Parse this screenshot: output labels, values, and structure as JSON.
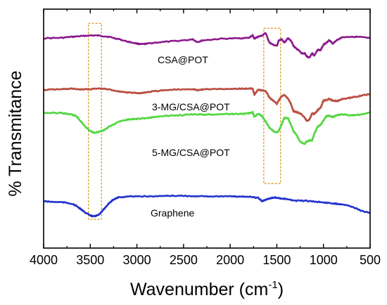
{
  "chart_data": {
    "type": "line",
    "xlabel": "Wavenumber",
    "xlabel_unit_base": "cm",
    "xlabel_unit_exp": "-1",
    "ylabel": "% Transmitance",
    "xlim": [
      4000,
      500
    ],
    "x_reversed": true,
    "ylim": [
      0,
      100
    ],
    "y_ticks_labeled": false,
    "x_ticks": [
      "4000",
      "3500",
      "3000",
      "2500",
      "2000",
      "1500",
      "1000",
      "500"
    ],
    "grid": false,
    "legend": "none",
    "series": [
      {
        "name": "CSA@POT",
        "color": "#8b1a8b",
        "x": [
          4000,
          3800,
          3700,
          3600,
          3500,
          3400,
          3300,
          3200,
          3100,
          3000,
          2950,
          2900,
          2800,
          2600,
          2400,
          2350,
          2300,
          2100,
          1900,
          1800,
          1760,
          1740,
          1700,
          1660,
          1620,
          1580,
          1540,
          1500,
          1480,
          1450,
          1420,
          1380,
          1350,
          1320,
          1290,
          1260,
          1230,
          1200,
          1180,
          1150,
          1120,
          1100,
          1060,
          1030,
          1000,
          970,
          940,
          900,
          850,
          800,
          700,
          600,
          500
        ],
        "y": [
          87.8,
          88.0,
          88.4,
          88.7,
          89.0,
          88.9,
          88.4,
          87.5,
          86.4,
          85.6,
          85.3,
          85.5,
          86.0,
          86.6,
          87.3,
          86.2,
          86.9,
          87.6,
          87.8,
          88.0,
          89.0,
          87.6,
          88.5,
          88.9,
          90.0,
          86.0,
          85.1,
          84.6,
          86.8,
          87.4,
          86.0,
          87.8,
          87.0,
          84.5,
          83.4,
          82.5,
          81.4,
          81.5,
          80.2,
          79.8,
          81.6,
          80.5,
          83.0,
          82.8,
          85.2,
          85.8,
          87.1,
          85.6,
          87.2,
          88.2,
          88.5,
          88.3,
          87.8
        ]
      },
      {
        "name": "3-MG/CSA@POT",
        "color": "#b03a2e",
        "x": [
          4000,
          3800,
          3700,
          3600,
          3500,
          3400,
          3300,
          3200,
          3100,
          3000,
          2950,
          2900,
          2800,
          2600,
          2400,
          2350,
          2300,
          2100,
          1900,
          1800,
          1760,
          1740,
          1700,
          1660,
          1620,
          1580,
          1540,
          1500,
          1480,
          1450,
          1420,
          1380,
          1350,
          1320,
          1290,
          1260,
          1230,
          1200,
          1180,
          1150,
          1120,
          1100,
          1060,
          1030,
          1000,
          970,
          940,
          900,
          850,
          800,
          700,
          600,
          500
        ],
        "y": [
          66.2,
          66.5,
          66.7,
          66.4,
          66.5,
          66.8,
          66.4,
          65.6,
          65.2,
          64.8,
          64.9,
          65.2,
          65.7,
          66.3,
          66.6,
          66.0,
          66.4,
          66.6,
          66.7,
          66.7,
          66.9,
          64.2,
          66.3,
          65.9,
          65.8,
          63.0,
          61.7,
          60.4,
          61.8,
          63.5,
          64.0,
          62.6,
          60.4,
          57.2,
          57.0,
          56.5,
          55.9,
          54.5,
          53.2,
          53.8,
          56.5,
          56.0,
          57.8,
          58.8,
          61.7,
          62.0,
          62.4,
          61.7,
          61.6,
          62.3,
          63.0,
          63.8,
          64.4
        ]
      },
      {
        "name": "5-MG/CSA@POT",
        "color": "#3fd12f",
        "x": [
          4000,
          3800,
          3700,
          3650,
          3600,
          3550,
          3500,
          3460,
          3400,
          3350,
          3300,
          3200,
          3100,
          3000,
          2900,
          2800,
          2600,
          2400,
          2200,
          2000,
          1900,
          1800,
          1760,
          1740,
          1700,
          1660,
          1620,
          1580,
          1540,
          1500,
          1480,
          1450,
          1420,
          1380,
          1350,
          1320,
          1290,
          1260,
          1230,
          1200,
          1180,
          1150,
          1120,
          1100,
          1060,
          1030,
          1000,
          970,
          940,
          900,
          850,
          800,
          700,
          600,
          500
        ],
        "y": [
          56.6,
          56.5,
          55.9,
          55.2,
          53.0,
          50.7,
          48.9,
          48.3,
          48.6,
          49.4,
          50.8,
          52.8,
          53.8,
          54.1,
          54.4,
          54.9,
          55.5,
          55.9,
          56.0,
          56.1,
          56.2,
          56.4,
          56.8,
          55.0,
          56.2,
          55.3,
          53.0,
          50.4,
          49.0,
          48.2,
          49.2,
          51.6,
          54.5,
          54.4,
          51.8,
          48.8,
          47.5,
          45.2,
          44.0,
          43.7,
          44.7,
          45.0,
          45.1,
          47.8,
          50.9,
          51.6,
          53.4,
          55.2,
          55.4,
          54.8,
          55.7,
          56.0,
          55.5,
          55.9,
          56.8
        ]
      },
      {
        "name": "Graphene",
        "color": "#2233cc",
        "x": [
          4000,
          3900,
          3800,
          3700,
          3650,
          3600,
          3550,
          3500,
          3460,
          3420,
          3380,
          3350,
          3300,
          3250,
          3200,
          3100,
          3000,
          2800,
          2600,
          2400,
          2200,
          2000,
          1900,
          1800,
          1700,
          1660,
          1620,
          1580,
          1540,
          1500,
          1450,
          1400,
          1300,
          1200,
          1100,
          1000,
          900,
          850,
          800,
          700,
          600,
          500
        ],
        "y": [
          19.6,
          19.3,
          19.2,
          18.6,
          17.7,
          16.2,
          14.8,
          13.6,
          13.3,
          13.7,
          15.1,
          16.5,
          18.7,
          20.4,
          21.2,
          21.6,
          21.7,
          21.6,
          21.9,
          21.8,
          21.7,
          21.6,
          21.6,
          21.5,
          21.0,
          19.6,
          20.2,
          20.8,
          21.1,
          21.1,
          20.7,
          20.5,
          19.8,
          19.8,
          19.5,
          19.1,
          18.7,
          18.5,
          18.4,
          17.4,
          15.7,
          14.6
        ]
      }
    ],
    "highlight_regions": [
      {
        "x": [
          3520,
          3380
        ],
        "y": [
          12.0,
          94.0
        ]
      },
      {
        "x": [
          1640,
          1460
        ],
        "y": [
          27.0,
          92.0
        ]
      }
    ],
    "highlight_color": "#d9a02b"
  },
  "series_labels": {
    "csa": "CSA@POT",
    "mg3": "3-MG/CSA@POT",
    "mg5": "5-MG/CSA@POT",
    "graphene": "Graphene"
  }
}
